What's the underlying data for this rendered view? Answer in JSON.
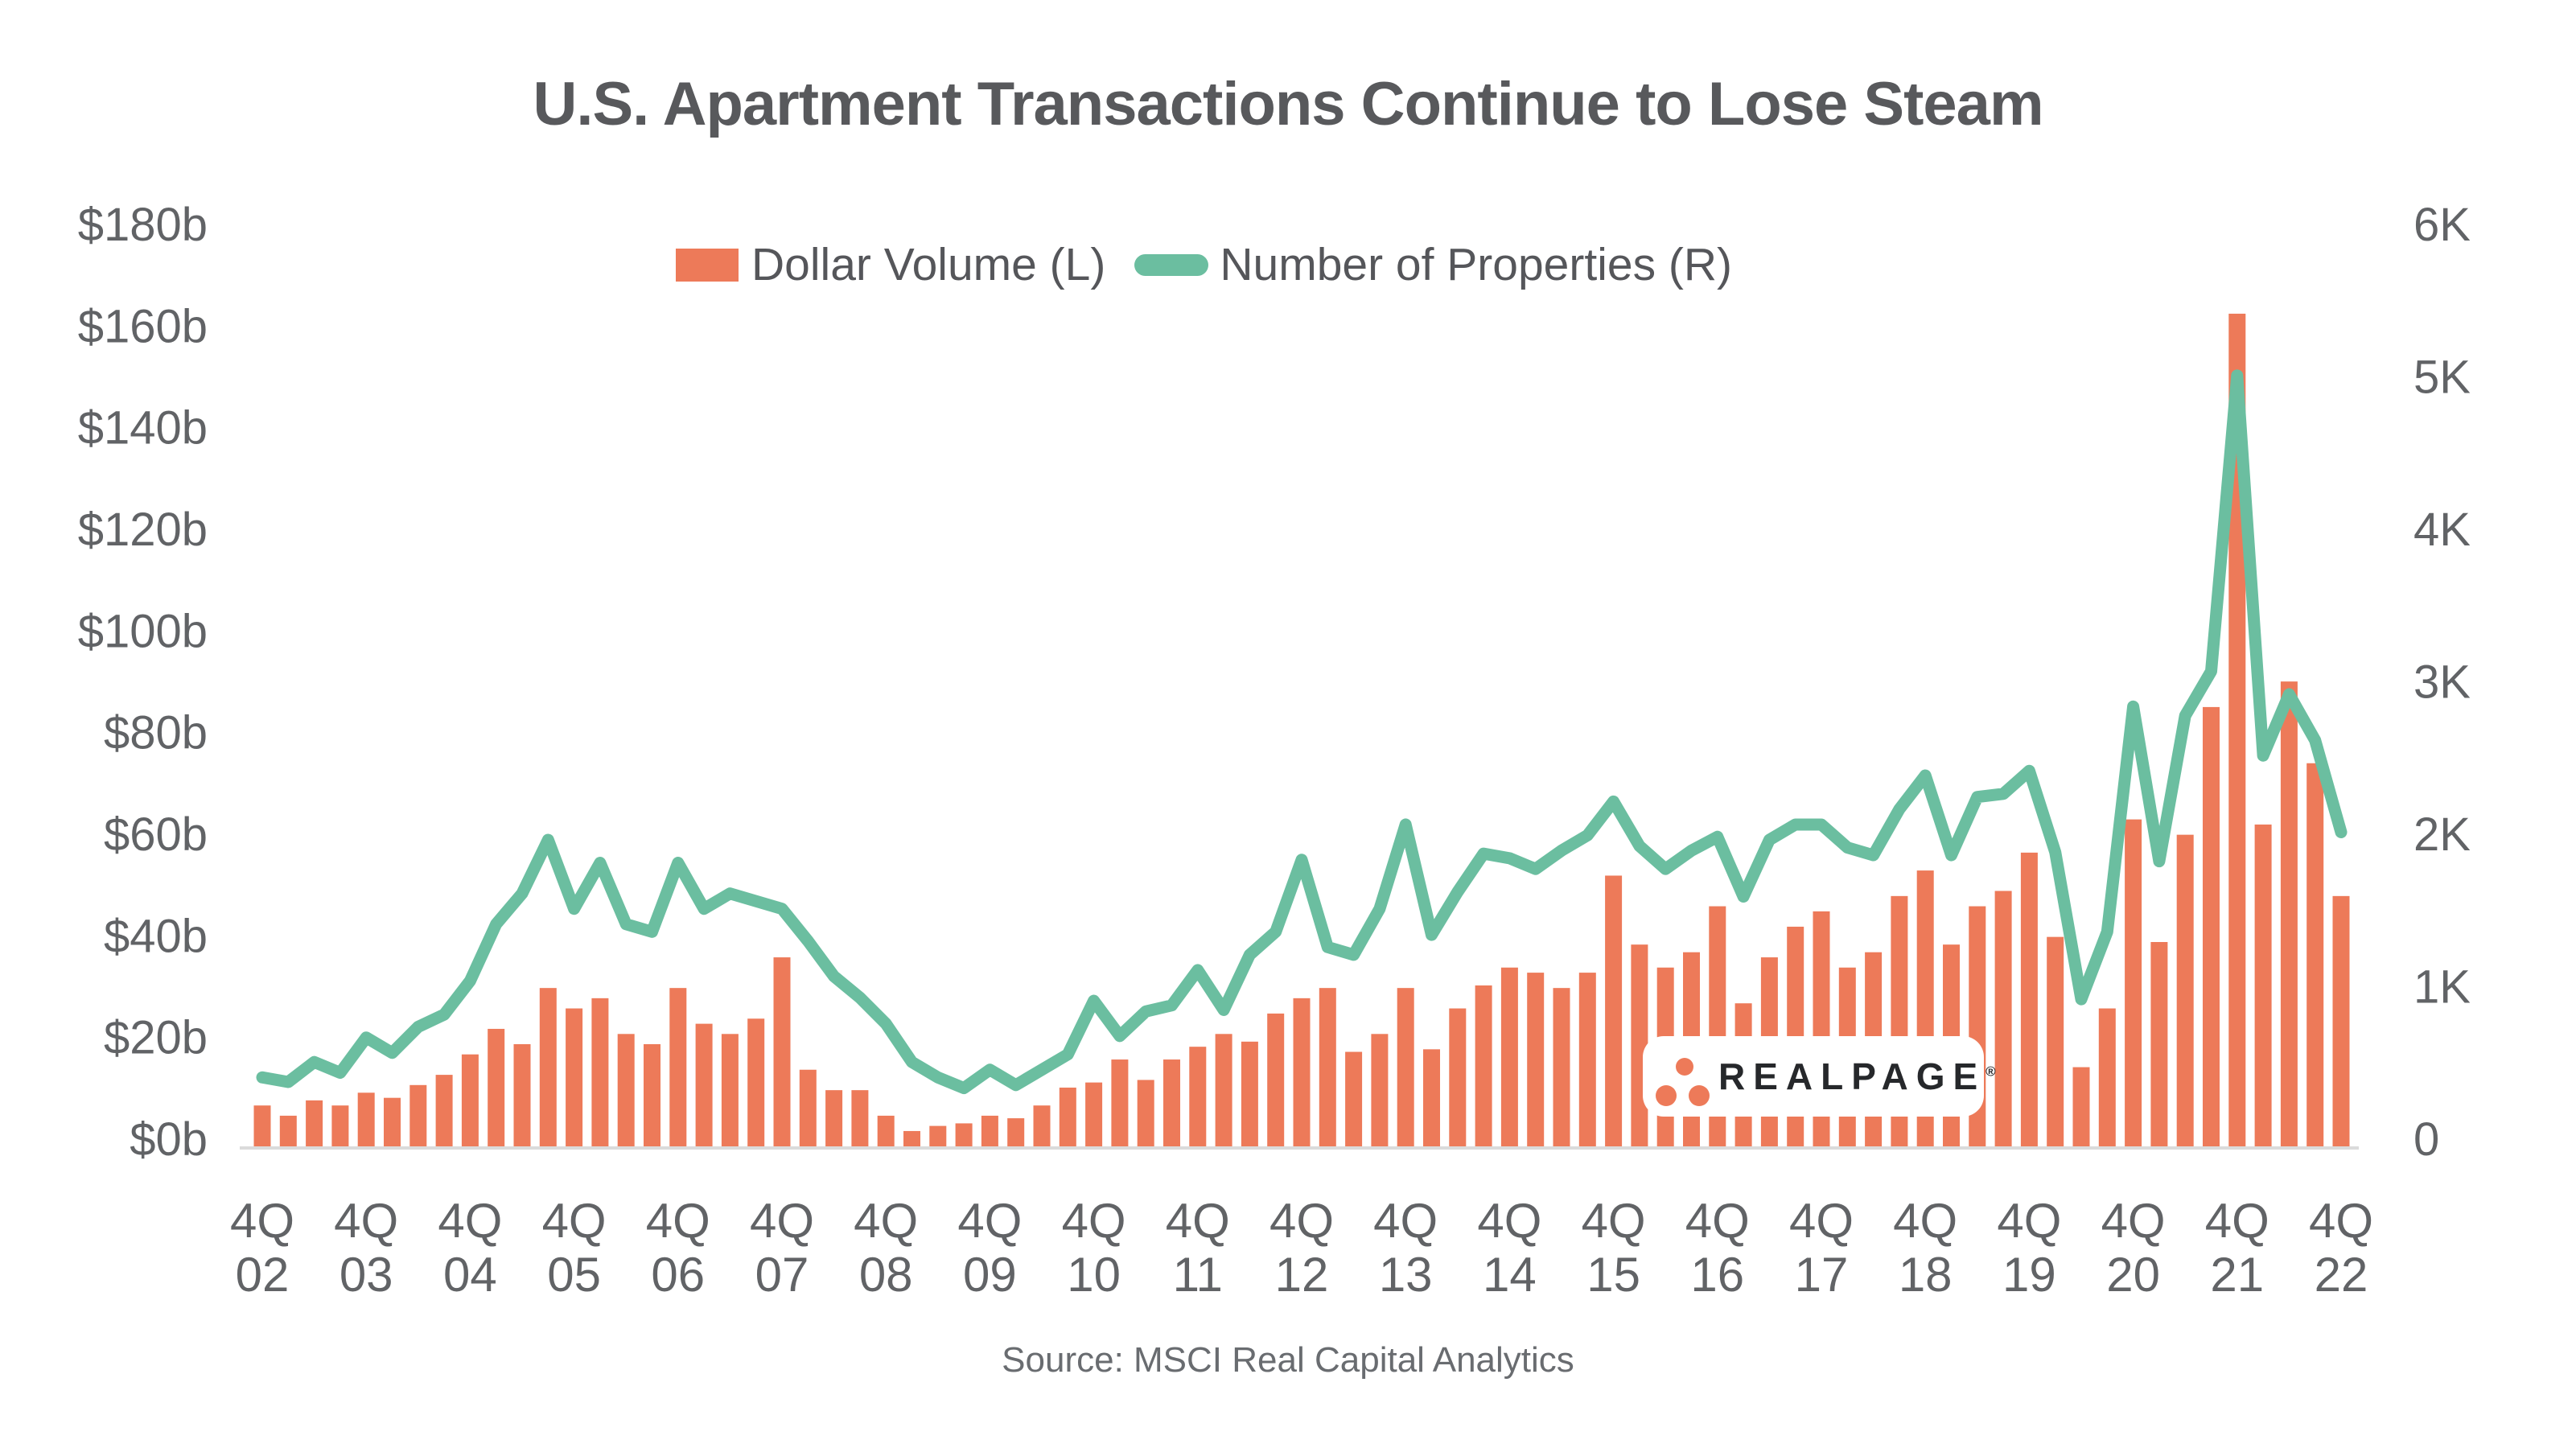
{
  "title": "U.S. Apartment Transactions Continue to Lose Steam",
  "legend": {
    "dollar_volume_label": "Dollar Volume (L)",
    "properties_label": "Number of Properties (R)"
  },
  "source": "Source: MSCI Real Capital Analytics",
  "watermark": {
    "brand": "REALPAGE",
    "registered": "®"
  },
  "colors": {
    "bar": "#ED7A59",
    "line": "#6BBEA0",
    "title_text": "#58595C",
    "axis_text": "#616366",
    "legend_text": "#55565A",
    "source_text": "#696C70",
    "baseline": "#DBDBDB",
    "logo_text": "#26282B",
    "logo_dot": "#ED7A59",
    "background": "#FFFFFF"
  },
  "chart_data": {
    "type": "combo",
    "categories": [
      "4Q02",
      "1Q03",
      "2Q03",
      "3Q03",
      "4Q03",
      "1Q04",
      "2Q04",
      "3Q04",
      "4Q04",
      "1Q05",
      "2Q05",
      "3Q05",
      "4Q05",
      "1Q06",
      "2Q06",
      "3Q06",
      "4Q06",
      "1Q07",
      "2Q07",
      "3Q07",
      "4Q07",
      "1Q08",
      "2Q08",
      "3Q08",
      "4Q08",
      "1Q09",
      "2Q09",
      "3Q09",
      "4Q09",
      "1Q10",
      "2Q10",
      "3Q10",
      "4Q10",
      "1Q11",
      "2Q11",
      "3Q11",
      "4Q11",
      "1Q12",
      "2Q12",
      "3Q12",
      "4Q12",
      "1Q13",
      "2Q13",
      "3Q13",
      "4Q13",
      "1Q14",
      "2Q14",
      "3Q14",
      "4Q14",
      "1Q15",
      "2Q15",
      "3Q15",
      "4Q15",
      "1Q16",
      "2Q16",
      "3Q16",
      "4Q16",
      "1Q17",
      "2Q17",
      "3Q17",
      "4Q17",
      "1Q18",
      "2Q18",
      "3Q18",
      "4Q18",
      "1Q19",
      "2Q19",
      "3Q19",
      "4Q19",
      "1Q20",
      "2Q20",
      "3Q20",
      "4Q20",
      "1Q21",
      "2Q21",
      "3Q21",
      "4Q21",
      "1Q22",
      "2Q22",
      "3Q22",
      "4Q22"
    ],
    "x_tick_labels_line1": "4Q",
    "x_tick_years": [
      "02",
      "03",
      "04",
      "05",
      "06",
      "07",
      "08",
      "09",
      "10",
      "11",
      "12",
      "13",
      "14",
      "15",
      "16",
      "17",
      "18",
      "19",
      "20",
      "21",
      "22"
    ],
    "series": [
      {
        "name": "Dollar Volume (L)",
        "type": "bar",
        "axis": "left",
        "unit": "billions USD",
        "values": [
          8,
          6,
          9,
          8,
          10.5,
          9.5,
          12,
          14,
          18,
          23,
          20,
          31,
          27,
          29,
          22,
          20,
          31,
          24,
          22,
          25,
          37,
          15,
          11,
          11,
          6,
          3,
          4,
          4.5,
          6,
          5.5,
          8,
          11.5,
          12.5,
          17,
          13,
          17,
          19.5,
          22,
          20.5,
          26,
          29,
          31,
          18.5,
          22,
          31,
          19,
          27,
          31.5,
          35,
          34,
          31,
          34,
          53,
          39.5,
          35,
          38,
          47,
          28,
          37,
          43,
          46,
          35,
          38,
          49,
          54,
          39.5,
          47,
          50,
          57.5,
          41,
          15.5,
          27,
          64,
          40,
          61,
          86,
          163,
          63,
          91,
          75,
          49
        ]
      },
      {
        "name": "Number of Properties (R)",
        "type": "line",
        "axis": "right",
        "unit": "thousands of properties",
        "values": [
          0.45,
          0.42,
          0.55,
          0.48,
          0.71,
          0.61,
          0.78,
          0.86,
          1.08,
          1.45,
          1.65,
          2.0,
          1.55,
          1.85,
          1.45,
          1.4,
          1.85,
          1.55,
          1.65,
          1.6,
          1.55,
          1.34,
          1.11,
          0.97,
          0.8,
          0.55,
          0.45,
          0.38,
          0.5,
          0.4,
          0.5,
          0.6,
          0.95,
          0.72,
          0.88,
          0.92,
          1.15,
          0.89,
          1.25,
          1.4,
          1.87,
          1.3,
          1.25,
          1.55,
          2.1,
          1.38,
          1.66,
          1.91,
          1.88,
          1.81,
          1.93,
          2.03,
          2.25,
          1.96,
          1.81,
          1.93,
          2.02,
          1.63,
          2.0,
          2.1,
          2.1,
          1.95,
          1.9,
          2.2,
          2.42,
          1.9,
          2.28,
          2.3,
          2.45,
          1.92,
          0.96,
          1.4,
          2.87,
          1.86,
          2.81,
          3.1,
          5.03,
          2.55,
          2.95,
          2.65,
          2.05
        ]
      }
    ],
    "left_axis": {
      "ticks": [
        "$180b",
        "$160b",
        "$140b",
        "$120b",
        "$100b",
        "$80b",
        "$60b",
        "$40b",
        "$20b",
        "$0b"
      ],
      "range": [
        0,
        180
      ]
    },
    "right_axis": {
      "ticks": [
        "6K",
        "5K",
        "4K",
        "3K",
        "2K",
        "1K",
        "0"
      ],
      "range": [
        0,
        6
      ]
    },
    "grid": false,
    "legend_position": "top"
  }
}
